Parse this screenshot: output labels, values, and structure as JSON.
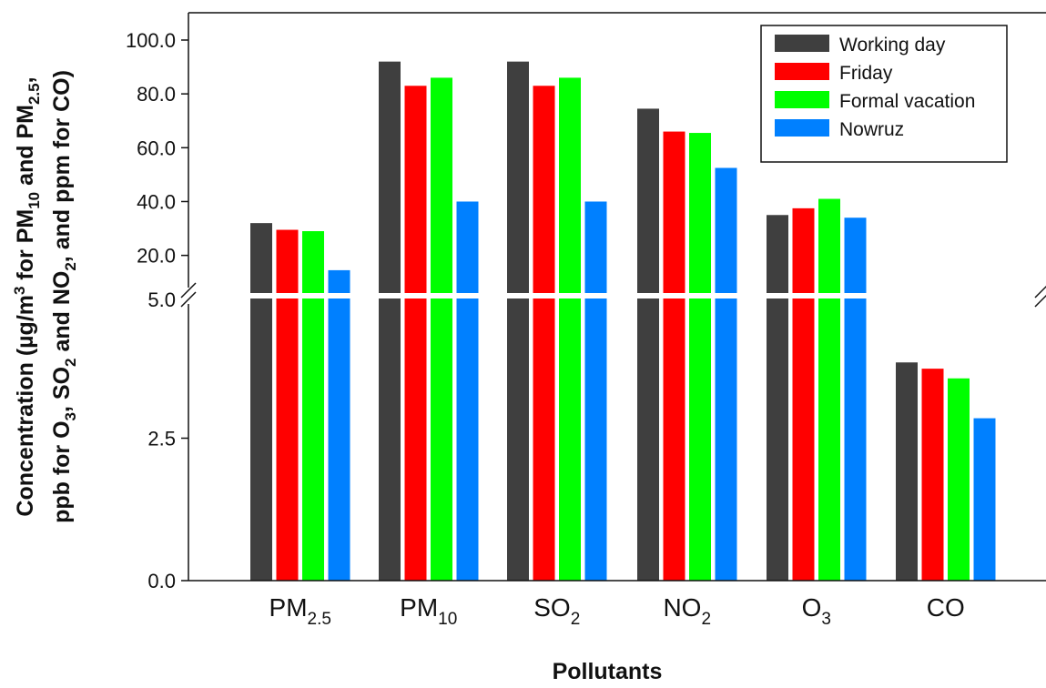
{
  "chart_data": {
    "type": "bar",
    "axis_break": {
      "lower_range": [
        0,
        5
      ],
      "upper_range": [
        5,
        100
      ]
    },
    "y_ticks_upper": [
      "100.0",
      "80.0",
      "60.0",
      "40.0",
      "20.0"
    ],
    "y_ticks_lower": [
      "5.0",
      "2.5",
      "0.0"
    ],
    "categories": [
      {
        "base": "PM",
        "sub": "2.5"
      },
      {
        "base": "PM",
        "sub": "10"
      },
      {
        "base": "SO",
        "sub": "2"
      },
      {
        "base": "NO",
        "sub": "2"
      },
      {
        "base": "O",
        "sub": "3"
      },
      {
        "base": "CO",
        "sub": ""
      }
    ],
    "series": [
      {
        "name": "Working day",
        "color": "#3f3f3f",
        "values": [
          32,
          92,
          92,
          74.5,
          35,
          3.83
        ]
      },
      {
        "name": "Friday",
        "color": "#ff0000",
        "values": [
          29.5,
          83,
          83,
          66,
          37.5,
          3.72
        ]
      },
      {
        "name": "Formal vacation",
        "color": "#00ff00",
        "values": [
          29,
          86,
          86,
          65.5,
          41,
          3.55
        ]
      },
      {
        "name": "Nowruz",
        "color": "#0080ff",
        "values": [
          14.5,
          40,
          40,
          52.5,
          34,
          2.85
        ]
      }
    ],
    "xlabel": "Pollutants",
    "ylabel": {
      "line1": {
        "a": "Concentration (µg/m",
        "a_sup": "3",
        "b": " for PM",
        "b_sub": "10",
        "c": " and PM",
        "c_sub": "2.5",
        "d": ","
      },
      "line2": {
        "a": "ppb for O",
        "a_sub": "3",
        "b": ", SO",
        "b_sub": "2",
        "c": " and NO",
        "c_sub": "2",
        "d": ", and ppm for CO)"
      }
    },
    "legend_position": "top-right",
    "grid": false
  }
}
